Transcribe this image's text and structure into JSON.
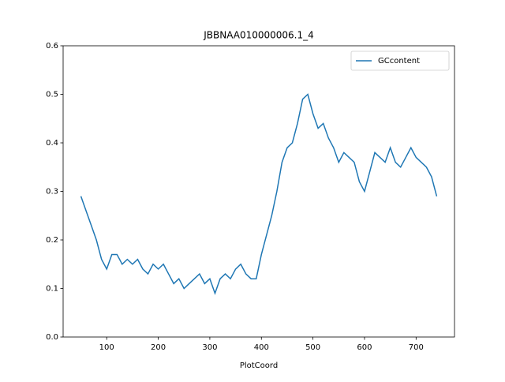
{
  "chart_data": {
    "type": "line",
    "title": "JBBNAA010000006.1_4",
    "xlabel": "PlotCoord",
    "x": [
      50,
      60,
      70,
      80,
      90,
      100,
      110,
      120,
      130,
      140,
      150,
      160,
      170,
      180,
      190,
      200,
      210,
      220,
      230,
      240,
      250,
      260,
      270,
      280,
      290,
      300,
      310,
      320,
      330,
      340,
      350,
      360,
      370,
      380,
      390,
      400,
      410,
      420,
      430,
      440,
      450,
      460,
      470,
      480,
      490,
      500,
      510,
      520,
      530,
      540,
      550,
      560,
      570,
      580,
      590,
      600,
      610,
      620,
      630,
      640,
      650,
      660,
      670,
      680,
      690,
      700,
      710,
      720,
      730,
      740
    ],
    "series": [
      {
        "name": "GCcontent",
        "color": "#1f77b4",
        "values": [
          0.29,
          0.26,
          0.23,
          0.2,
          0.16,
          0.14,
          0.17,
          0.17,
          0.15,
          0.16,
          0.15,
          0.16,
          0.14,
          0.13,
          0.15,
          0.14,
          0.15,
          0.13,
          0.11,
          0.12,
          0.1,
          0.11,
          0.12,
          0.13,
          0.11,
          0.12,
          0.09,
          0.12,
          0.13,
          0.12,
          0.14,
          0.15,
          0.13,
          0.12,
          0.12,
          0.17,
          0.21,
          0.25,
          0.3,
          0.36,
          0.39,
          0.4,
          0.44,
          0.49,
          0.5,
          0.46,
          0.43,
          0.44,
          0.41,
          0.39,
          0.36,
          0.38,
          0.37,
          0.36,
          0.32,
          0.3,
          0.34,
          0.38,
          0.37,
          0.36,
          0.39,
          0.36,
          0.35,
          0.37,
          0.39,
          0.37,
          0.36,
          0.35,
          0.33,
          0.29
        ]
      }
    ],
    "xlim": [
      15.5,
      774.5
    ],
    "xticks": [
      100,
      200,
      300,
      400,
      500,
      600,
      700
    ],
    "ylim": [
      0,
      0.6
    ],
    "yticks": [
      {
        "value": 0,
        "label": "0.0"
      },
      0.1,
      0.2,
      0.3,
      0.4,
      0.5,
      0.6
    ],
    "legend": "upper right"
  }
}
